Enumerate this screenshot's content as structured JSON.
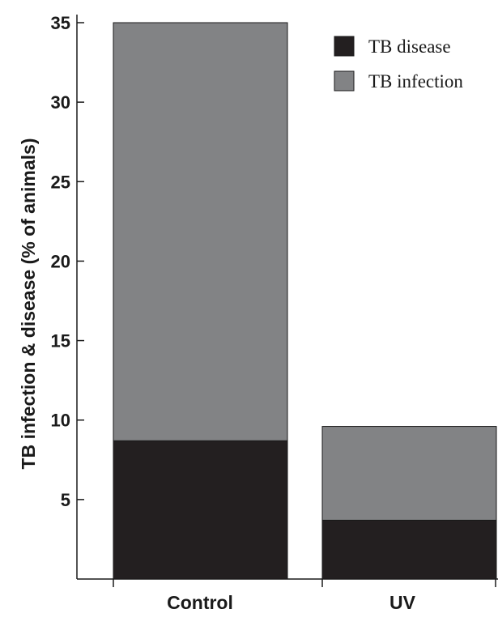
{
  "chart_data": {
    "type": "bar",
    "stacked": true,
    "categories": [
      "Control",
      "UV"
    ],
    "series": [
      {
        "name": "TB disease",
        "values": [
          8.7,
          3.7
        ],
        "color": "#231f20"
      },
      {
        "name": "TB infection",
        "values": [
          26.3,
          5.9
        ],
        "color": "#828385"
      }
    ],
    "totals": [
      35.0,
      9.6
    ],
    "ylabel": "TB infection & disease (% of animals)",
    "yticks": [
      5,
      10,
      15,
      20,
      25,
      30,
      35
    ],
    "ylim": [
      0,
      35
    ],
    "legend_position": "top-right",
    "grid": false
  }
}
